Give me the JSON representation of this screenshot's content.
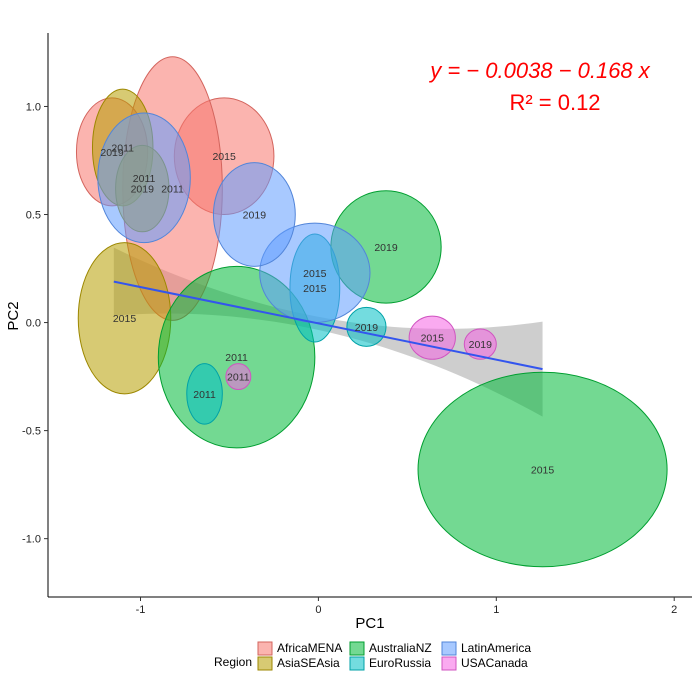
{
  "chart_data": {
    "type": "scatter",
    "xlabel": "PC1",
    "ylabel": "PC2",
    "xlim": [
      -1.52,
      2.1
    ],
    "ylim": [
      -1.27,
      1.34
    ],
    "x_ticks": [
      {
        "value": -1,
        "label": "-1"
      },
      {
        "value": 0,
        "label": "0"
      },
      {
        "value": 1,
        "label": "1"
      },
      {
        "value": 2,
        "label": "2"
      }
    ],
    "y_ticks": [
      {
        "value": -1.0,
        "label": "-1.0"
      },
      {
        "value": -0.5,
        "label": "-0.5"
      },
      {
        "value": 0.0,
        "label": "0.0"
      },
      {
        "value": 0.5,
        "label": "0.5"
      },
      {
        "value": 1.0,
        "label": "1.0"
      }
    ],
    "grid": false,
    "equation_line1": "y = − 0.0038 − 0.168 x",
    "equation_line2": "R² = 0.12",
    "fit": {
      "intercept": -0.0038,
      "slope": -0.168,
      "x_range": [
        -1.15,
        1.26
      ],
      "color": "#3355ee",
      "band_color": "#bdbdbd"
    },
    "legend": {
      "title": "Region",
      "position": "bottom",
      "items": [
        {
          "name": "AfricaMENA",
          "color": "#F8766D"
        },
        {
          "name": "AsiaSEAsia",
          "color": "#B79F00"
        },
        {
          "name": "AustraliaNZ",
          "color": "#00BA38"
        },
        {
          "name": "EuroRussia",
          "color": "#00BFC4"
        },
        {
          "name": "LatinAmerica",
          "color": "#619CFF"
        },
        {
          "name": "USACanada",
          "color": "#F564E3"
        }
      ]
    },
    "points": [
      {
        "region": "AfricaMENA",
        "label": "2015",
        "x": -0.53,
        "y": 0.77,
        "rx": 0.28,
        "ry": 0.27
      },
      {
        "region": "AfricaMENA",
        "label": "2011",
        "x": -0.82,
        "y": 0.62,
        "rx": 0.28,
        "ry": 0.61
      },
      {
        "region": "AfricaMENA",
        "label": "2019",
        "x": -1.16,
        "y": 0.79,
        "rx": 0.2,
        "ry": 0.25
      },
      {
        "region": "AsiaSEAsia",
        "label": "2015",
        "x": -1.09,
        "y": 0.02,
        "rx": 0.26,
        "ry": 0.35
      },
      {
        "region": "AsiaSEAsia",
        "label": "2011",
        "x": -1.1,
        "y": 0.81,
        "rx": 0.17,
        "ry": 0.27
      },
      {
        "region": "AsiaSEAsia",
        "label": "2019",
        "x": -0.99,
        "y": 0.62,
        "rx": 0.15,
        "ry": 0.2
      },
      {
        "region": "AustraliaNZ",
        "label": "2015",
        "x": 1.26,
        "y": -0.68,
        "rx": 0.7,
        "ry": 0.45
      },
      {
        "region": "AustraliaNZ",
        "label": "2011",
        "x": -0.46,
        "y": -0.16,
        "rx": 0.44,
        "ry": 0.42
      },
      {
        "region": "AustraliaNZ",
        "label": "2019",
        "x": 0.38,
        "y": 0.35,
        "rx": 0.31,
        "ry": 0.26
      },
      {
        "region": "EuroRussia",
        "label": "2015",
        "x": -0.02,
        "y": 0.16,
        "rx": 0.14,
        "ry": 0.25
      },
      {
        "region": "EuroRussia",
        "label": "2011",
        "x": -0.64,
        "y": -0.33,
        "rx": 0.1,
        "ry": 0.14
      },
      {
        "region": "EuroRussia",
        "label": "2019",
        "x": 0.27,
        "y": -0.02,
        "rx": 0.11,
        "ry": 0.09
      },
      {
        "region": "LatinAmerica",
        "label": "2015",
        "x": -0.02,
        "y": 0.23,
        "rx": 0.31,
        "ry": 0.23
      },
      {
        "region": "LatinAmerica",
        "label": "2011",
        "x": -0.98,
        "y": 0.67,
        "rx": 0.26,
        "ry": 0.3
      },
      {
        "region": "LatinAmerica",
        "label": "2019",
        "x": -0.36,
        "y": 0.5,
        "rx": 0.23,
        "ry": 0.24
      },
      {
        "region": "USACanada",
        "label": "2015",
        "x": 0.64,
        "y": -0.07,
        "rx": 0.13,
        "ry": 0.1
      },
      {
        "region": "USACanada",
        "label": "2011",
        "x": -0.45,
        "y": -0.25,
        "rx": 0.07,
        "ry": 0.06
      },
      {
        "region": "USACanada",
        "label": "2019",
        "x": 0.91,
        "y": -0.1,
        "rx": 0.09,
        "ry": 0.07
      }
    ]
  }
}
